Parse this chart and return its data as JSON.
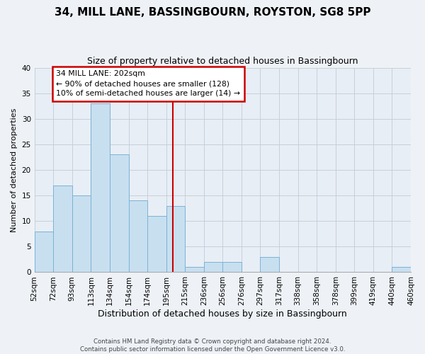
{
  "title": "34, MILL LANE, BASSINGBOURN, ROYSTON, SG8 5PP",
  "subtitle": "Size of property relative to detached houses in Bassingbourn",
  "xlabel": "Distribution of detached houses by size in Bassingbourn",
  "ylabel": "Number of detached properties",
  "bins": [
    "52sqm",
    "72sqm",
    "93sqm",
    "113sqm",
    "134sqm",
    "154sqm",
    "174sqm",
    "195sqm",
    "215sqm",
    "236sqm",
    "256sqm",
    "276sqm",
    "297sqm",
    "317sqm",
    "338sqm",
    "358sqm",
    "378sqm",
    "399sqm",
    "419sqm",
    "440sqm",
    "460sqm"
  ],
  "counts": [
    8,
    17,
    15,
    33,
    23,
    14,
    11,
    13,
    1,
    2,
    2,
    0,
    3,
    0,
    0,
    0,
    0,
    0,
    0,
    1
  ],
  "bar_color": "#c8dff0",
  "bar_edge_color": "#7ab3d4",
  "annotation_box_text": "34 MILL LANE: 202sqm\n← 90% of detached houses are smaller (128)\n10% of semi-detached houses are larger (14) →",
  "annotation_box_color": "#ffffff",
  "annotation_box_edge_color": "#cc0000",
  "annotation_line_color": "#cc0000",
  "ylim": [
    0,
    40
  ],
  "yticks": [
    0,
    5,
    10,
    15,
    20,
    25,
    30,
    35,
    40
  ],
  "footer": "Contains HM Land Registry data © Crown copyright and database right 2024.\nContains public sector information licensed under the Open Government Licence v3.0.",
  "title_fontsize": 11,
  "subtitle_fontsize": 9,
  "xlabel_fontsize": 9,
  "ylabel_fontsize": 8,
  "tick_fontsize": 7.5,
  "background_color": "#eef2f7",
  "plot_background_color": "#e8eef5",
  "grid_color": "#c0ccd8"
}
